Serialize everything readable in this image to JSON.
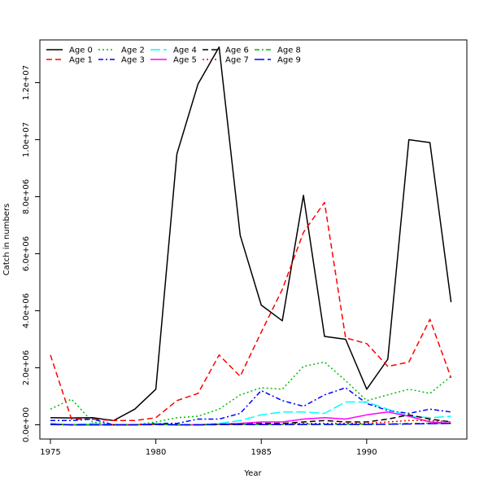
{
  "chart_data": {
    "type": "line",
    "title": "",
    "xlabel": "Year",
    "ylabel": "Catch in numbers",
    "xlim": [
      1974.5,
      1994.75
    ],
    "ylim": [
      -500000,
      13500000
    ],
    "x_ticks": [
      1975,
      1980,
      1985,
      1990
    ],
    "y_ticks": [
      0,
      2000000,
      4000000,
      6000000,
      8000000,
      10000000,
      12000000
    ],
    "x_tick_labels": [
      "1975",
      "1980",
      "1985",
      "1990"
    ],
    "y_tick_labels": [
      "0.0e+00",
      "2.0e+06",
      "4.0e+06",
      "6.0e+06",
      "8.0e+06",
      "1.0e+07",
      "1.2e+07"
    ],
    "legend_position": "top-left",
    "grid": false,
    "x": [
      1975,
      1976,
      1977,
      1978,
      1979,
      1980,
      1981,
      1982,
      1983,
      1984,
      1985,
      1986,
      1987,
      1988,
      1989,
      1990,
      1991,
      1992,
      1993,
      1994
    ],
    "series": [
      {
        "name": "Age 0",
        "color": "#000000",
        "dash": "",
        "values": [
          250000,
          240000,
          250000,
          150000,
          550000,
          1250000,
          9500000,
          11950000,
          13250000,
          6650000,
          4200000,
          3650000,
          8050000,
          3100000,
          3000000,
          1250000,
          2300000,
          10000000,
          9900000,
          4300000
        ]
      },
      {
        "name": "Age 1",
        "color": "#ff0000",
        "dash": "7,4",
        "values": [
          2450000,
          200000,
          200000,
          150000,
          150000,
          250000,
          850000,
          1100000,
          2450000,
          1700000,
          3250000,
          4750000,
          6750000,
          7800000,
          3050000,
          2850000,
          2050000,
          2200000,
          3700000,
          1650000
        ]
      },
      {
        "name": "Age 2",
        "color": "#00bb00",
        "dash": "2,3",
        "values": [
          550000,
          900000,
          100000,
          0,
          0,
          100000,
          250000,
          300000,
          550000,
          1050000,
          1300000,
          1250000,
          2050000,
          2200000,
          1550000,
          850000,
          1050000,
          1250000,
          1100000,
          1700000
        ]
      },
      {
        "name": "Age 3",
        "color": "#0000ff",
        "dash": "6,3,2,3",
        "values": [
          150000,
          150000,
          200000,
          0,
          0,
          50000,
          50000,
          200000,
          200000,
          400000,
          1200000,
          850000,
          650000,
          1050000,
          1300000,
          750000,
          500000,
          400000,
          550000,
          450000
        ]
      },
      {
        "name": "Age 4",
        "color": "#00ffff",
        "dash": "12,4",
        "values": [
          50000,
          0,
          50000,
          0,
          0,
          50000,
          0,
          0,
          50000,
          150000,
          350000,
          450000,
          450000,
          400000,
          800000,
          800000,
          550000,
          300000,
          250000,
          300000
        ]
      },
      {
        "name": "Age 5",
        "color": "#ff00ff",
        "dash": "",
        "values": [
          20000,
          0,
          0,
          0,
          0,
          20000,
          0,
          0,
          20000,
          50000,
          100000,
          100000,
          200000,
          250000,
          200000,
          350000,
          450000,
          300000,
          100000,
          50000
        ]
      },
      {
        "name": "Age 6",
        "color": "#000000",
        "dash": "7,4",
        "values": [
          20000,
          0,
          0,
          0,
          0,
          20000,
          0,
          0,
          20000,
          20000,
          50000,
          50000,
          100000,
          150000,
          100000,
          100000,
          200000,
          350000,
          200000,
          100000
        ]
      },
      {
        "name": "Age 7",
        "color": "#ff0000",
        "dash": "2,3",
        "values": [
          10000,
          0,
          0,
          0,
          0,
          10000,
          0,
          0,
          10000,
          10000,
          20000,
          20000,
          50000,
          50000,
          50000,
          50000,
          100000,
          150000,
          150000,
          100000
        ]
      },
      {
        "name": "Age 8",
        "color": "#00bb00",
        "dash": "6,3,2,3",
        "values": [
          10000,
          0,
          0,
          0,
          0,
          10000,
          0,
          0,
          10000,
          10000,
          10000,
          10000,
          20000,
          20000,
          20000,
          20000,
          30000,
          50000,
          50000,
          50000
        ]
      },
      {
        "name": "Age 9",
        "color": "#0000ff",
        "dash": "12,4",
        "values": [
          5000,
          0,
          0,
          0,
          0,
          5000,
          0,
          0,
          5000,
          5000,
          5000,
          5000,
          10000,
          10000,
          10000,
          10000,
          20000,
          30000,
          40000,
          50000
        ]
      }
    ]
  }
}
